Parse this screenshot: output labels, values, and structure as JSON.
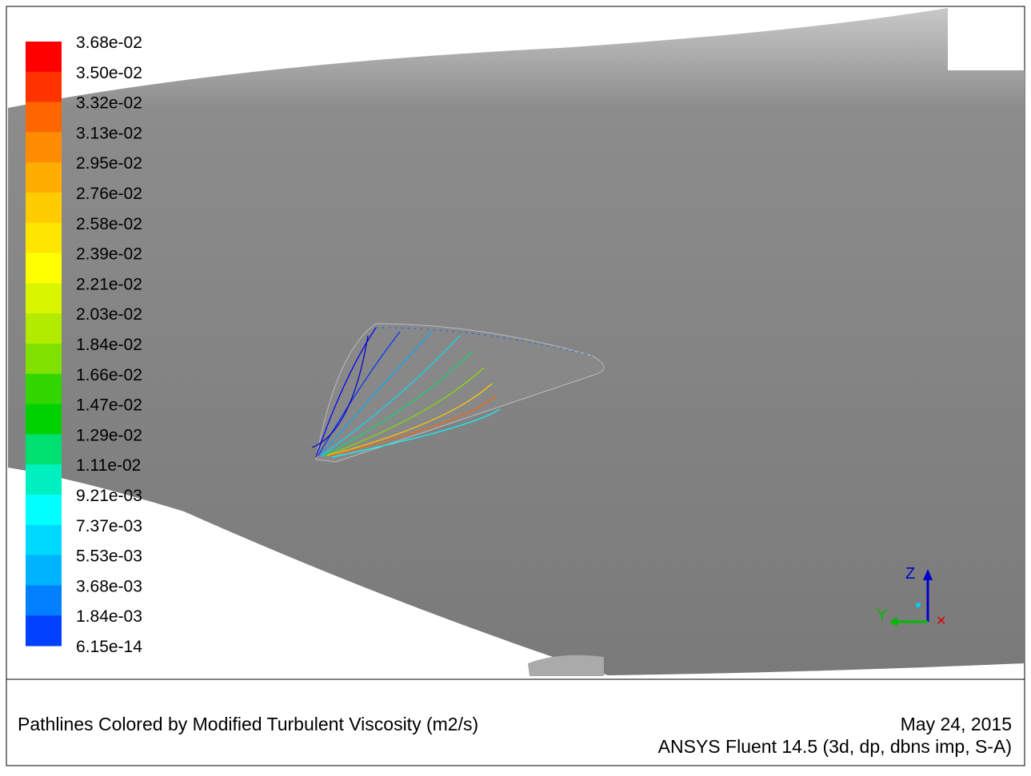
{
  "legend": {
    "labels": [
      "3.68e-02",
      "3.50e-02",
      "3.32e-02",
      "3.13e-02",
      "2.95e-02",
      "2.76e-02",
      "2.58e-02",
      "2.39e-02",
      "2.21e-02",
      "2.03e-02",
      "1.84e-02",
      "1.66e-02",
      "1.47e-02",
      "1.29e-02",
      "1.11e-02",
      "9.21e-03",
      "7.37e-03",
      "5.53e-03",
      "3.68e-03",
      "1.84e-03",
      "6.15e-14"
    ],
    "colors": [
      "#ff0000",
      "#ff3300",
      "#ff6600",
      "#ff8c00",
      "#ffad00",
      "#ffcc00",
      "#ffe600",
      "#ffff00",
      "#d9f500",
      "#b3eb00",
      "#80e000",
      "#33d600",
      "#00d100",
      "#00e070",
      "#00f0c0",
      "#00ffff",
      "#00d9ff",
      "#00b3ff",
      "#0080ff",
      "#0040ff",
      "#0000ff"
    ]
  },
  "triad": {
    "z": "Z",
    "y": "Y"
  },
  "footer": {
    "title": "Pathlines Colored by Modified Turbulent Viscosity (m2/s)",
    "date": "May 24, 2015",
    "version": "ANSYS Fluent 14.5 (3d, dp, dbns imp, S-A)"
  }
}
